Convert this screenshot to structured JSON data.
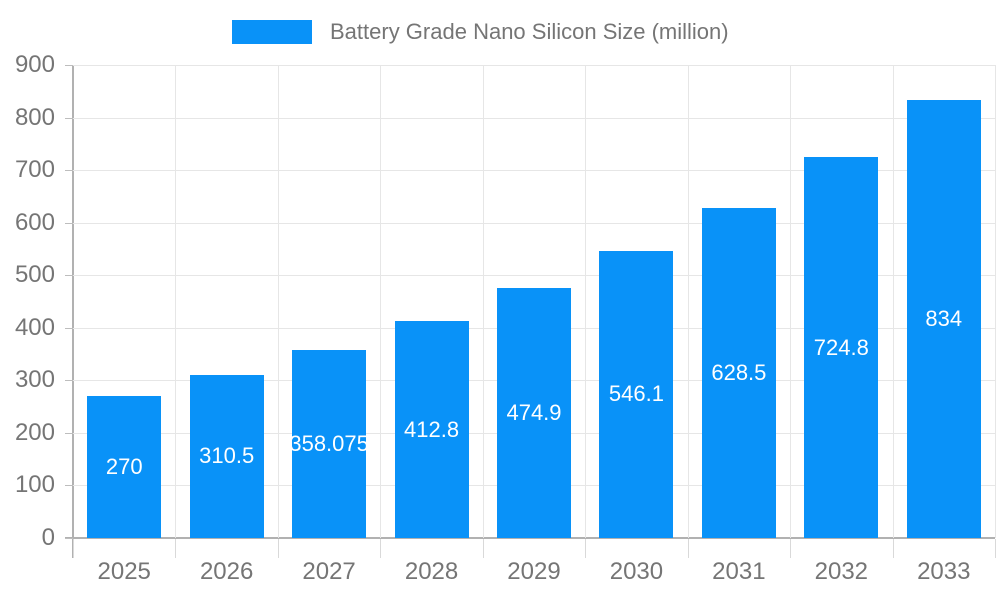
{
  "chart_data": {
    "type": "bar",
    "title": "Battery Grade Nano Silicon Size (million)",
    "legend": {
      "position": "top",
      "entries": [
        "Battery Grade Nano Silicon Size (million)"
      ]
    },
    "categories": [
      "2025",
      "2026",
      "2027",
      "2028",
      "2029",
      "2030",
      "2031",
      "2032",
      "2033"
    ],
    "series": [
      {
        "name": "Battery Grade Nano Silicon Size (million)",
        "values": [
          270,
          310.5,
          358.075,
          412.8,
          474.9,
          546.1,
          628.5,
          724.8,
          834
        ]
      }
    ],
    "value_labels": [
      "270",
      "310.5",
      "358.075",
      "412.8",
      "474.9",
      "546.1",
      "628.5",
      "724.8",
      "834"
    ],
    "xlabel": "",
    "ylabel": "",
    "ylim": [
      0,
      900
    ],
    "ytick_step": 100,
    "yticks": [
      0,
      100,
      200,
      300,
      400,
      500,
      600,
      700,
      800,
      900
    ],
    "grid": "horizontal and vertical light gray gridlines",
    "colors": {
      "bar": "#0992f8",
      "bar_label_text": "#ffffff",
      "axis_text": "#757575",
      "axis_line": "#b1b1b1",
      "gridline": "#e6e6e6",
      "background": "#ffffff"
    }
  }
}
